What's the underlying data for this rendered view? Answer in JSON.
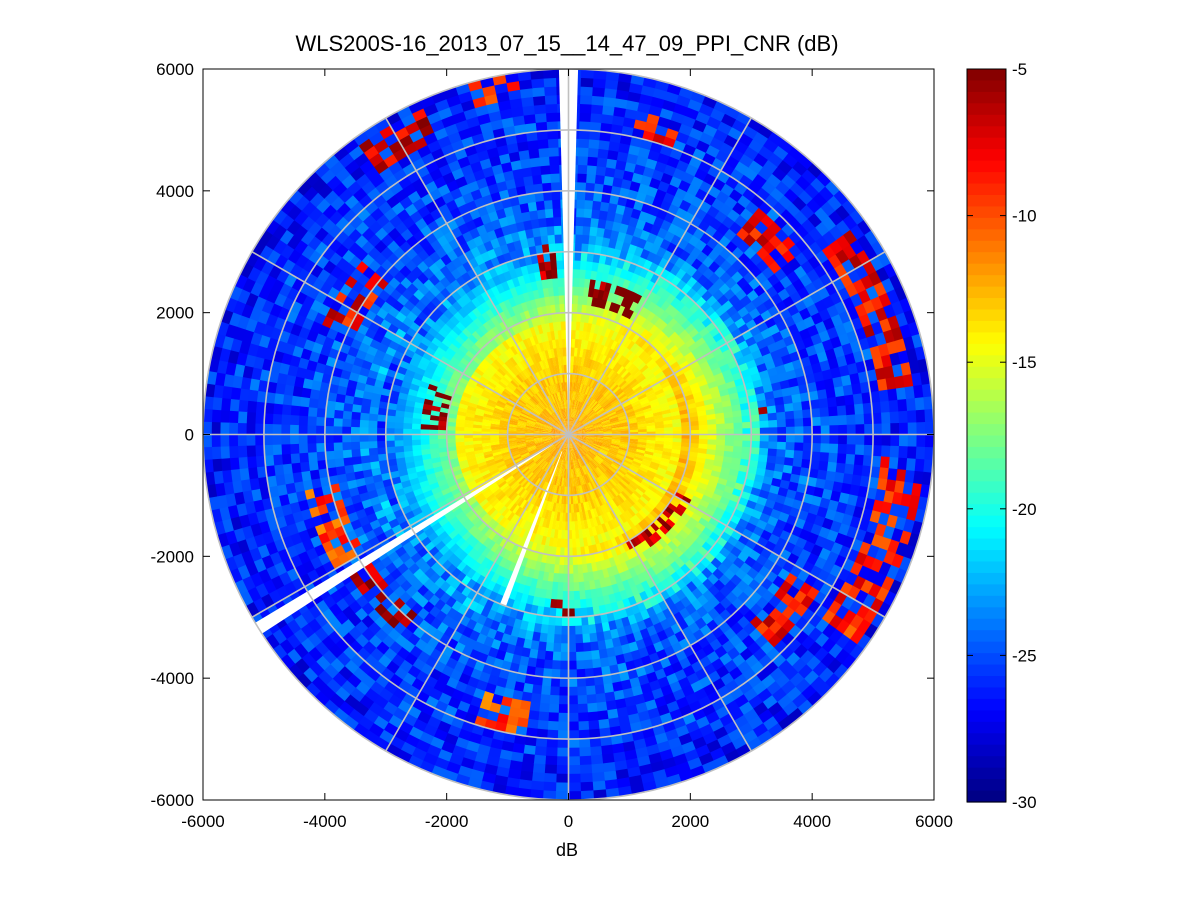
{
  "chart_data": {
    "type": "heatmap",
    "subtype": "polar-ppi",
    "title": "WLS200S-16_2013_07_15__14_47_09_PPI_CNR (dB)",
    "xlabel": "dB",
    "ylabel": "",
    "xlim": [
      -6000,
      6000
    ],
    "ylim": [
      -6000,
      6000
    ],
    "xticks": [
      -6000,
      -4000,
      -2000,
      0,
      2000,
      4000,
      6000
    ],
    "yticks": [
      6000,
      4000,
      2000,
      0,
      -2000,
      -4000,
      -6000
    ],
    "xtick_labels": [
      "-6000",
      "-4000",
      "-2000",
      "0",
      "2000",
      "4000",
      "6000"
    ],
    "ytick_labels": [
      "6000",
      "4000",
      "2000",
      "0",
      "-2000",
      "-4000",
      "-6000"
    ],
    "max_range": 6000,
    "range_rings": [
      1000,
      2000,
      3000,
      4000,
      5000,
      6000
    ],
    "spoke_angles_deg": [
      0,
      30,
      60,
      90,
      120,
      150,
      180,
      210,
      240,
      270,
      300,
      330
    ],
    "colorbar": {
      "colormap": "jet",
      "min": -30,
      "max": -5,
      "ticks": [
        -5,
        -10,
        -15,
        -20,
        -25,
        -30
      ],
      "tick_labels": [
        "-5",
        "-10",
        "-15",
        "-20",
        "-25",
        "-30"
      ]
    },
    "cnr_profile_db": {
      "ranges": [
        0,
        300,
        600,
        900,
        1200,
        1500,
        1800,
        2100,
        2400,
        2700,
        3000,
        3500,
        4000,
        4500,
        5000,
        5500,
        6000
      ],
      "values": [
        -12,
        -12.5,
        -13,
        -13,
        -13.5,
        -14,
        -14.5,
        -16,
        -18,
        -20,
        -22,
        -24.5,
        -25,
        -25.5,
        -25.5,
        -26,
        -26.5
      ]
    },
    "clutter_arcs": [
      {
        "az_from": 272,
        "az_to": 290,
        "r_from": 2050,
        "r_to": 2450,
        "value": -5
      },
      {
        "az_from": 350,
        "az_to": 356,
        "r_from": 2600,
        "r_to": 3100,
        "value": -6
      },
      {
        "az_from": 8,
        "az_to": 28,
        "r_from": 2200,
        "r_to": 2600,
        "value": -5
      },
      {
        "az_from": 118,
        "az_to": 152,
        "r_from": 1950,
        "r_to": 2300,
        "value": -6
      },
      {
        "az_from": 40,
        "az_to": 52,
        "r_from": 4300,
        "r_to": 4800,
        "value": -8
      },
      {
        "az_from": 55,
        "az_to": 82,
        "r_from": 5200,
        "r_to": 5700,
        "value": -8
      },
      {
        "az_from": 95,
        "az_to": 125,
        "r_from": 5200,
        "r_to": 5800,
        "value": -9
      },
      {
        "az_from": 122,
        "az_to": 136,
        "r_from": 4300,
        "r_to": 4800,
        "value": -8
      },
      {
        "az_from": 295,
        "az_to": 310,
        "r_from": 3900,
        "r_to": 4400,
        "value": -8
      },
      {
        "az_from": 240,
        "az_to": 258,
        "r_from": 3900,
        "r_to": 4400,
        "value": -10
      },
      {
        "az_from": 220,
        "az_to": 238,
        "r_from": 3800,
        "r_to": 4300,
        "value": -6
      },
      {
        "az_from": 188,
        "az_to": 198,
        "r_from": 4500,
        "r_to": 5000,
        "value": -10
      },
      {
        "az_from": 345,
        "az_to": 352,
        "r_from": 5600,
        "r_to": 6000,
        "value": -9
      },
      {
        "az_from": 325,
        "az_to": 335,
        "r_from": 5300,
        "r_to": 5800,
        "value": -7
      },
      {
        "az_from": 12,
        "az_to": 20,
        "r_from": 5000,
        "r_to": 5400,
        "value": -8
      },
      {
        "az_from": 178,
        "az_to": 186,
        "r_from": 2700,
        "r_to": 3000,
        "value": -6
      },
      {
        "az_from": 82,
        "az_to": 86,
        "r_from": 3100,
        "r_to": 3300,
        "value": -5
      }
    ],
    "blanked_sectors": [
      {
        "az_from": -1.5,
        "az_to": 1.5,
        "r_from": 120,
        "r_to": 6000
      },
      {
        "az_from": 237,
        "az_to": 239,
        "r_from": 300,
        "r_to": 6000
      },
      {
        "az_from": 200,
        "az_to": 202,
        "r_from": 300,
        "r_to": 3000
      }
    ]
  }
}
